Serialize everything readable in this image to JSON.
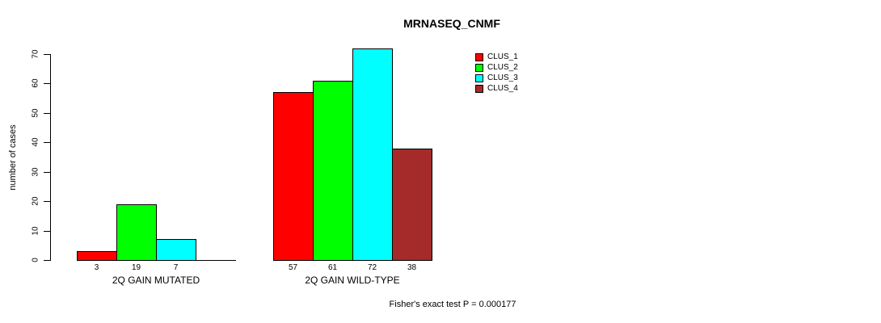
{
  "title": "MRNASEQ_CNMF",
  "footer": "Fisher's exact test P = 0.000177",
  "y_axis": {
    "label": "number of cases",
    "ticks": [
      0,
      10,
      20,
      30,
      40,
      50,
      60,
      70
    ],
    "max": 70
  },
  "legend": {
    "items": [
      "CLUS_1",
      "CLUS_2",
      "CLUS_3",
      "CLUS_4"
    ]
  },
  "chart_data": {
    "type": "bar",
    "title": "MRNASEQ_CNMF",
    "xlabel": "",
    "ylabel": "number of cases",
    "ylim": [
      0,
      70
    ],
    "yticks": [
      0,
      10,
      20,
      30,
      40,
      50,
      60,
      70
    ],
    "grid": false,
    "legend_position": "right",
    "categories": [
      "2Q GAIN MUTATED",
      "2Q GAIN WILD-TYPE"
    ],
    "series": [
      {
        "name": "CLUS_1",
        "color": "#ff0000",
        "values": [
          3,
          57
        ]
      },
      {
        "name": "CLUS_2",
        "color": "#00ff00",
        "values": [
          19,
          61
        ]
      },
      {
        "name": "CLUS_3",
        "color": "#00ffff",
        "values": [
          7,
          72
        ]
      },
      {
        "name": "CLUS_4",
        "color": "#a52a2a",
        "values": [
          0,
          38
        ]
      }
    ],
    "bar_value_labels": [
      [
        "3",
        "19",
        "7",
        ""
      ],
      [
        "57",
        "61",
        "72",
        "38"
      ]
    ],
    "annotation": "Fisher's exact test P = 0.000177"
  }
}
